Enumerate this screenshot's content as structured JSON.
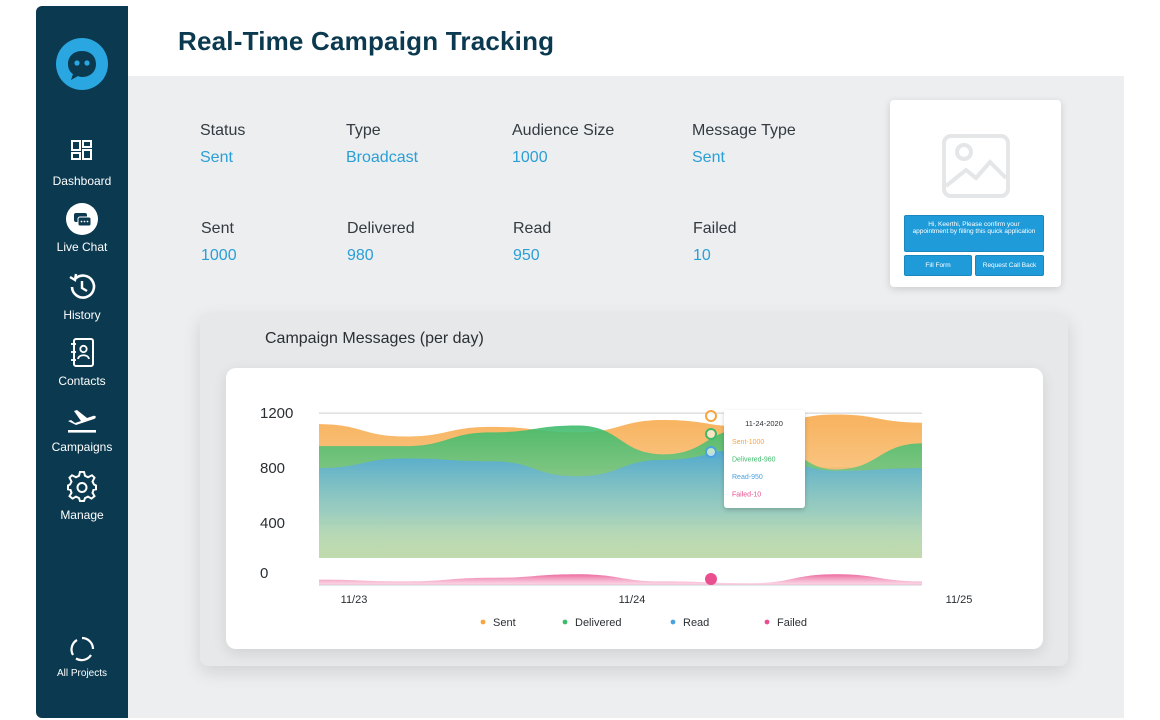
{
  "sidebar": {
    "items": [
      {
        "label": "Dashboard",
        "icon": "dashboard-icon"
      },
      {
        "label": "Live Chat",
        "icon": "live-chat-icon"
      },
      {
        "label": "History",
        "icon": "history-icon"
      },
      {
        "label": "Contacts",
        "icon": "contacts-icon"
      },
      {
        "label": "Campaigns",
        "icon": "plane-icon"
      },
      {
        "label": "Manage",
        "icon": "gear-icon"
      }
    ],
    "footer": {
      "label": "All Projects",
      "icon": "refresh-icon"
    }
  },
  "header": {
    "title": "Real-Time Campaign Tracking"
  },
  "stats": {
    "row1": [
      {
        "label": "Status",
        "value": "Sent"
      },
      {
        "label": "Type",
        "value": "Broadcast"
      },
      {
        "label": "Audience Size",
        "value": "1000"
      },
      {
        "label": "Message Type",
        "value": "Sent"
      }
    ],
    "row2": [
      {
        "label": "Sent",
        "value": "1000"
      },
      {
        "label": "Delivered",
        "value": "980"
      },
      {
        "label": "Read",
        "value": "950"
      },
      {
        "label": "Failed",
        "value": "10"
      }
    ]
  },
  "preview": {
    "message": "Hi, Keerthi, Please confirm your appointment by filling this quick application",
    "buttons": [
      "Fill Form",
      "Request Call Back"
    ]
  },
  "colors": {
    "sidebar": "#0b3a50",
    "accent": "#2a9fd6",
    "sent": "#f7a541",
    "delivered": "#3dbb6b",
    "read": "#4aa3df",
    "failed": "#e94f8f"
  },
  "chart_data": {
    "type": "area",
    "title": "Campaign Messages (per day)",
    "x_ticks": [
      "11/23",
      "11/24",
      "11/25"
    ],
    "y_ticks": [
      "1200",
      "800",
      "400",
      "0"
    ],
    "ylim": [
      0,
      1200
    ],
    "series": [
      {
        "name": "Sent",
        "values": [
          1120,
          1030,
          1100,
          1060,
          1150,
          1100,
          1190,
          1130
        ]
      },
      {
        "name": "Delivered",
        "values": [
          960,
          960,
          1060,
          1110,
          900,
          1090,
          790,
          980
        ]
      },
      {
        "name": "Read",
        "values": [
          800,
          870,
          850,
          740,
          860,
          940,
          780,
          800
        ]
      },
      {
        "name": "Failed",
        "values": [
          30,
          20,
          40,
          60,
          20,
          10,
          60,
          20
        ]
      }
    ],
    "tooltip": {
      "date": "11-24-2020",
      "lines": [
        "Sent-1000",
        "Delivered-960",
        "Read-950",
        "Failed-10"
      ]
    },
    "legend": [
      "Sent",
      "Delivered",
      "Read",
      "Failed"
    ],
    "legend_position": "bottom"
  }
}
